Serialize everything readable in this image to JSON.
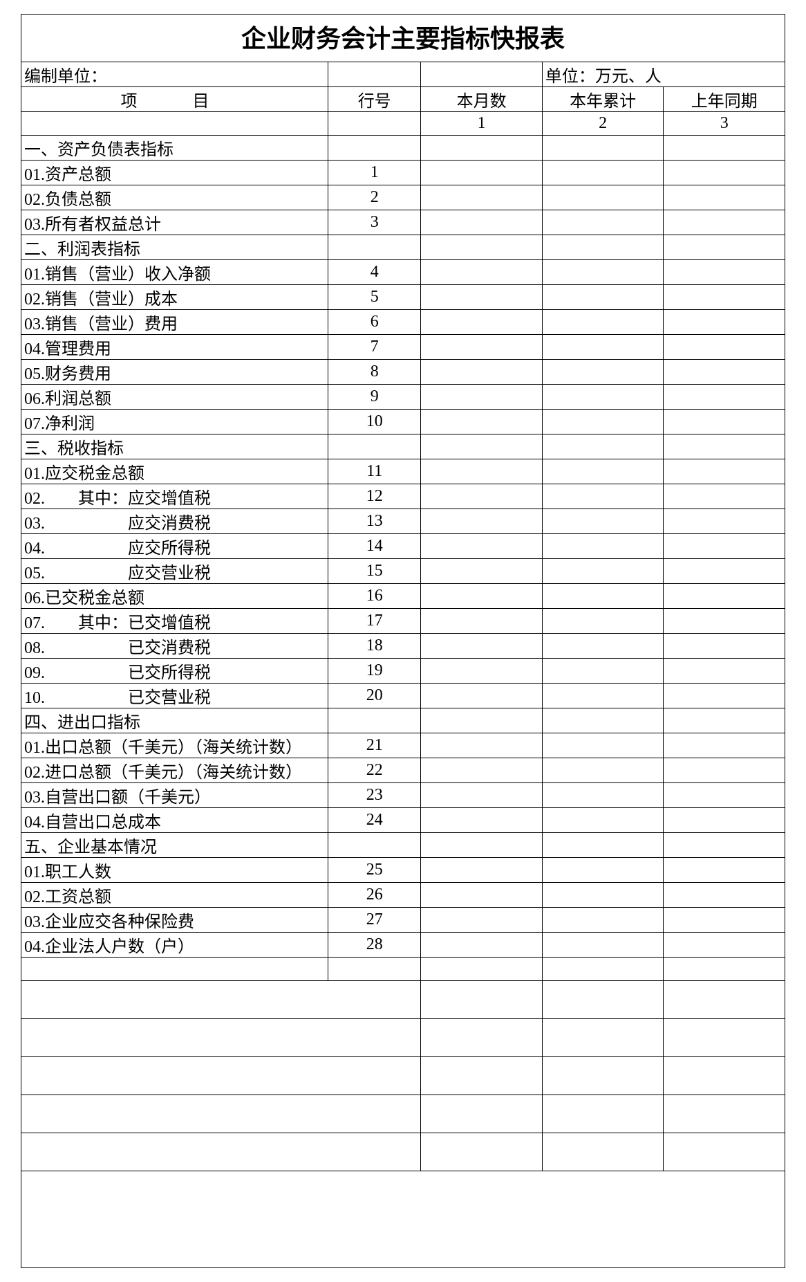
{
  "title": "企业财务会计主要指标快报表",
  "header": {
    "prepared_by_label": "编制单位：",
    "unit_label": "单位：万元、人"
  },
  "columns": {
    "item": "项　目",
    "row_no": "行号",
    "this_month": "本月数",
    "ytd": "本年累计",
    "prev_year": "上年同期"
  },
  "col_numbers": [
    "1",
    "2",
    "3"
  ],
  "rows": [
    {
      "item": "一、资产负债表指标",
      "row_no": ""
    },
    {
      "item": "01.资产总额",
      "row_no": "1"
    },
    {
      "item": "02.负债总额",
      "row_no": "2"
    },
    {
      "item": "03.所有者权益总计",
      "row_no": "3"
    },
    {
      "item": "二、利润表指标",
      "row_no": ""
    },
    {
      "item": "01.销售（营业）收入净额",
      "row_no": "4"
    },
    {
      "item": "02.销售（营业）成本",
      "row_no": "5"
    },
    {
      "item": "03.销售（营业）费用",
      "row_no": "6"
    },
    {
      "item": "04.管理费用",
      "row_no": "7"
    },
    {
      "item": "05.财务费用",
      "row_no": "8"
    },
    {
      "item": "06.利润总额",
      "row_no": "9"
    },
    {
      "item": "07.净利润",
      "row_no": "10"
    },
    {
      "item": "三、税收指标",
      "row_no": ""
    },
    {
      "item": "01.应交税金总额",
      "row_no": "11"
    },
    {
      "item": "02.　　其中：应交增值税",
      "row_no": "12"
    },
    {
      "item": "03.　　　　　应交消费税",
      "row_no": "13"
    },
    {
      "item": "04.　　　　　应交所得税",
      "row_no": "14"
    },
    {
      "item": "05.　　　　　应交营业税",
      "row_no": "15"
    },
    {
      "item": "06.已交税金总额",
      "row_no": "16"
    },
    {
      "item": "07.　　其中：已交增值税",
      "row_no": "17"
    },
    {
      "item": "08.　　　　　已交消费税",
      "row_no": "18"
    },
    {
      "item": "09.　　　　　已交所得税",
      "row_no": "19"
    },
    {
      "item": "10.　　　　　已交营业税",
      "row_no": "20"
    },
    {
      "item": "四、进出口指标",
      "row_no": ""
    },
    {
      "item": "01.出口总额（千美元）（海关统计数）",
      "row_no": "21"
    },
    {
      "item": "02.进口总额（千美元）（海关统计数）",
      "row_no": "22"
    },
    {
      "item": "03.自营出口额（千美元）",
      "row_no": "23"
    },
    {
      "item": "04.自营出口总成本",
      "row_no": "24"
    },
    {
      "item": "五、企业基本情况",
      "row_no": ""
    },
    {
      "item": "01.职工人数",
      "row_no": "25"
    },
    {
      "item": "02.工资总额",
      "row_no": "26"
    },
    {
      "item": "03.企业应交各种保险费",
      "row_no": "27"
    },
    {
      "item": "04.企业法人户数（户）",
      "row_no": "28"
    }
  ],
  "style": {
    "border_color": "#000000",
    "background": "#ffffff",
    "title_fontsize": 36,
    "cell_fontsize": 24
  }
}
